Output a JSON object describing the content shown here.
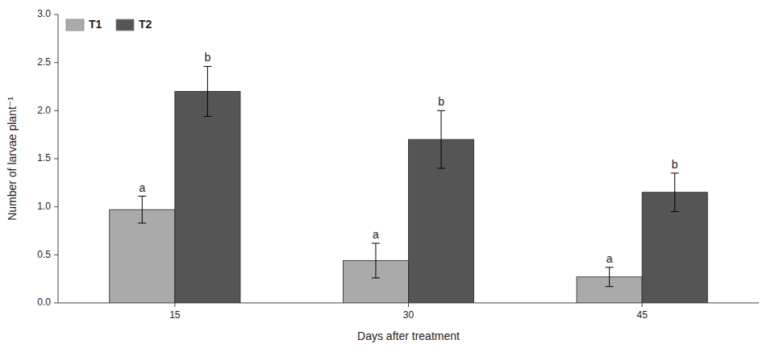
{
  "chart_data": {
    "type": "bar",
    "xlabel": "Days after treatment",
    "ylabel": "Number of larvae plant⁻¹",
    "categories": [
      "15",
      "30",
      "45"
    ],
    "series": [
      {
        "name": "T1",
        "color": "#aaaaaa",
        "values": [
          0.97,
          0.44,
          0.27
        ],
        "errors": [
          0.14,
          0.18,
          0.1
        ],
        "annotations": [
          "a",
          "a",
          "a"
        ]
      },
      {
        "name": "T2",
        "color": "#555555",
        "values": [
          2.2,
          1.7,
          1.15
        ],
        "errors": [
          0.26,
          0.3,
          0.2
        ],
        "annotations": [
          "b",
          "b",
          "b"
        ]
      }
    ],
    "ylim": [
      0.0,
      3.0
    ],
    "yticks": [
      {
        "value": 0.0,
        "label": "0.0"
      },
      0.5,
      {
        "value": 1.0,
        "label": "1.0"
      },
      1.5,
      {
        "value": 2.0,
        "label": "2.0"
      },
      2.5,
      {
        "value": 3.0,
        "label": "3.0"
      }
    ],
    "legend": "upper left",
    "grid": false
  }
}
